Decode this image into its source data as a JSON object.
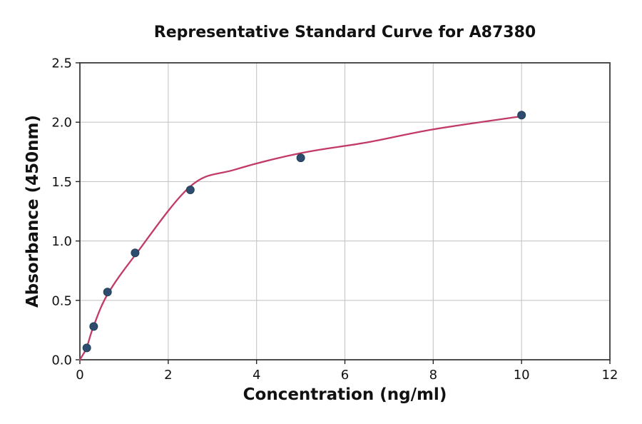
{
  "chart_data": {
    "type": "scatter",
    "title": "Representative Standard Curve for A87380",
    "xlabel": "Concentration (ng/ml)",
    "ylabel": "Absorbance (450nm)",
    "xlim": [
      0,
      12
    ],
    "ylim": [
      0,
      2.5
    ],
    "xtick_labels": [
      "0",
      "2",
      "4",
      "6",
      "8",
      "10",
      "12"
    ],
    "xtick_values": [
      0,
      2,
      4,
      6,
      8,
      10,
      12
    ],
    "ytick_labels": [
      "0.0",
      "0.5",
      "1.0",
      "1.5",
      "2.0",
      "2.5"
    ],
    "ytick_values": [
      0,
      0.5,
      1.0,
      1.5,
      2.0,
      2.5
    ],
    "grid": true,
    "legend": false,
    "series": [
      {
        "name": "standard-points",
        "x": [
          0.156,
          0.3125,
          0.625,
          1.25,
          2.5,
          5,
          10
        ],
        "y": [
          0.1,
          0.28,
          0.57,
          0.9,
          1.43,
          1.7,
          2.06
        ]
      }
    ],
    "fit_curve": {
      "name": "4pl-fit",
      "anchors": [
        [
          0,
          0
        ],
        [
          0.08,
          0.05
        ],
        [
          0.156,
          0.105
        ],
        [
          0.3125,
          0.285
        ],
        [
          0.625,
          0.55
        ],
        [
          1.25,
          0.88
        ],
        [
          2.5,
          1.46
        ],
        [
          3.5,
          1.6
        ],
        [
          5,
          1.74
        ],
        [
          6.5,
          1.83
        ],
        [
          8,
          1.94
        ],
        [
          10,
          2.05
        ]
      ]
    },
    "colors": {
      "curve": "#c23a66",
      "marker": "#2e4d6e",
      "marker_edge": "#24405c",
      "grid": "#c6c6c6",
      "spine": "#3a3a3a",
      "tick": "#222222",
      "text": "#111111",
      "background": "#ffffff"
    }
  }
}
